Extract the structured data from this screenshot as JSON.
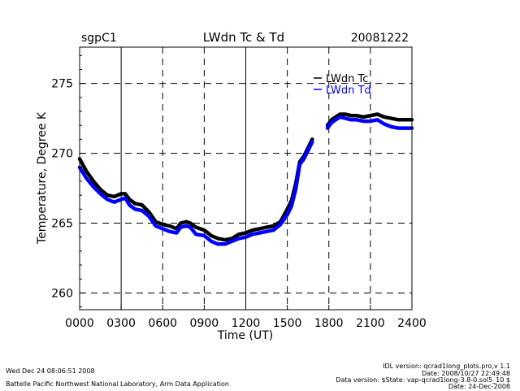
{
  "chart_data": {
    "type": "line",
    "site": "sgpC1",
    "title": "LWdn Tc & Td",
    "date": "20081222",
    "xlabel": "Time (UT)",
    "ylabel": "Temperature, Degree K",
    "xlim": [
      0,
      24
    ],
    "ylim": [
      258.8,
      277.6
    ],
    "x_ticks": [
      0,
      3,
      6,
      9,
      12,
      15,
      18,
      21,
      24
    ],
    "x_tick_labels": [
      "0000",
      "0300",
      "0600",
      "0900",
      "1200",
      "1500",
      "1800",
      "2100",
      "2400"
    ],
    "y_ticks": [
      260,
      265,
      270,
      275
    ],
    "y_tick_labels": [
      "260",
      "265",
      "270",
      "275"
    ],
    "grid": true,
    "legend_position": "top-right",
    "series": [
      {
        "name": "LWdn Tc",
        "color": "#000000",
        "segments": [
          [
            [
              0,
              269.6
            ],
            [
              0.5,
              268.7
            ],
            [
              1,
              268.0
            ],
            [
              1.5,
              267.4
            ],
            [
              2,
              267.0
            ],
            [
              2.5,
              266.9
            ],
            [
              3,
              267.1
            ],
            [
              3.3,
              267.1
            ],
            [
              3.6,
              266.7
            ],
            [
              4,
              266.4
            ],
            [
              4.5,
              266.3
            ],
            [
              5,
              265.8
            ],
            [
              5.5,
              265.1
            ],
            [
              6,
              264.9
            ],
            [
              6.5,
              264.8
            ],
            [
              7,
              264.6
            ],
            [
              7.3,
              265.0
            ],
            [
              7.7,
              265.1
            ],
            [
              8,
              265.0
            ],
            [
              8.4,
              264.7
            ],
            [
              9,
              264.5
            ],
            [
              9.5,
              264.1
            ],
            [
              10,
              263.9
            ],
            [
              10.5,
              263.8
            ],
            [
              11,
              263.9
            ],
            [
              11.5,
              264.2
            ],
            [
              12,
              264.3
            ],
            [
              12.5,
              264.5
            ],
            [
              13,
              264.6
            ],
            [
              13.5,
              264.7
            ],
            [
              14,
              264.8
            ],
            [
              14.5,
              265.1
            ],
            [
              15,
              266.0
            ],
            [
              15.3,
              266.6
            ],
            [
              15.6,
              267.8
            ],
            [
              15.9,
              269.4
            ],
            [
              16.2,
              269.8
            ],
            [
              16.5,
              270.4
            ],
            [
              16.8,
              271.0
            ]
          ],
          [
            [
              17.9,
              272.0
            ],
            [
              18.2,
              272.4
            ],
            [
              18.5,
              272.6
            ],
            [
              18.8,
              272.8
            ],
            [
              19.2,
              272.8
            ],
            [
              19.6,
              272.7
            ],
            [
              20,
              272.7
            ],
            [
              20.5,
              272.6
            ],
            [
              21,
              272.7
            ],
            [
              21.5,
              272.8
            ],
            [
              22,
              272.6
            ],
            [
              22.5,
              272.5
            ],
            [
              23,
              272.4
            ],
            [
              24,
              272.4
            ]
          ]
        ]
      },
      {
        "name": "LWdn Td",
        "color": "#0000ff",
        "segments": [
          [
            [
              0,
              269.0
            ],
            [
              0.5,
              268.2
            ],
            [
              1,
              267.6
            ],
            [
              1.5,
              267.1
            ],
            [
              2,
              266.7
            ],
            [
              2.5,
              266.5
            ],
            [
              3,
              266.7
            ],
            [
              3.3,
              266.8
            ],
            [
              3.6,
              266.3
            ],
            [
              4,
              266.0
            ],
            [
              4.5,
              265.9
            ],
            [
              5,
              265.5
            ],
            [
              5.5,
              264.8
            ],
            [
              6,
              264.6
            ],
            [
              6.5,
              264.4
            ],
            [
              7,
              264.3
            ],
            [
              7.3,
              264.7
            ],
            [
              7.7,
              264.8
            ],
            [
              8,
              264.7
            ],
            [
              8.4,
              264.2
            ],
            [
              9,
              264.1
            ],
            [
              9.5,
              263.7
            ],
            [
              10,
              263.5
            ],
            [
              10.5,
              263.5
            ],
            [
              11,
              263.7
            ],
            [
              11.5,
              263.9
            ],
            [
              12,
              264.0
            ],
            [
              12.5,
              264.2
            ],
            [
              13,
              264.3
            ],
            [
              13.5,
              264.4
            ],
            [
              14,
              264.5
            ],
            [
              14.5,
              264.9
            ],
            [
              15,
              265.6
            ],
            [
              15.3,
              266.2
            ],
            [
              15.6,
              267.4
            ],
            [
              15.9,
              269.2
            ],
            [
              16.2,
              269.6
            ],
            [
              16.5,
              270.2
            ],
            [
              16.8,
              270.8
            ]
          ],
          [
            [
              17.9,
              271.8
            ],
            [
              18.2,
              272.2
            ],
            [
              18.5,
              272.4
            ],
            [
              18.8,
              272.6
            ],
            [
              19.2,
              272.5
            ],
            [
              19.6,
              272.4
            ],
            [
              20,
              272.4
            ],
            [
              20.5,
              272.3
            ],
            [
              21,
              272.3
            ],
            [
              21.5,
              272.4
            ],
            [
              22,
              272.1
            ],
            [
              22.5,
              271.9
            ],
            [
              23,
              271.8
            ],
            [
              24,
              271.8
            ]
          ]
        ]
      }
    ]
  },
  "footer": {
    "timestamp": "Wed Dec 24 08:06:51 2008",
    "organization": "Battelle Pacific Northwest National Laboratory, Arm Data Application",
    "idl_version": "IDL version: qcrad1long_plots.pro,v 1.1",
    "idl_date": "Date: 2008/10/27 22:49:48",
    "data_version": "Data version: $State: vap-qcrad1long-3.8-0.sol5_10 $",
    "data_date": "Date: 24-Dec-2008"
  }
}
